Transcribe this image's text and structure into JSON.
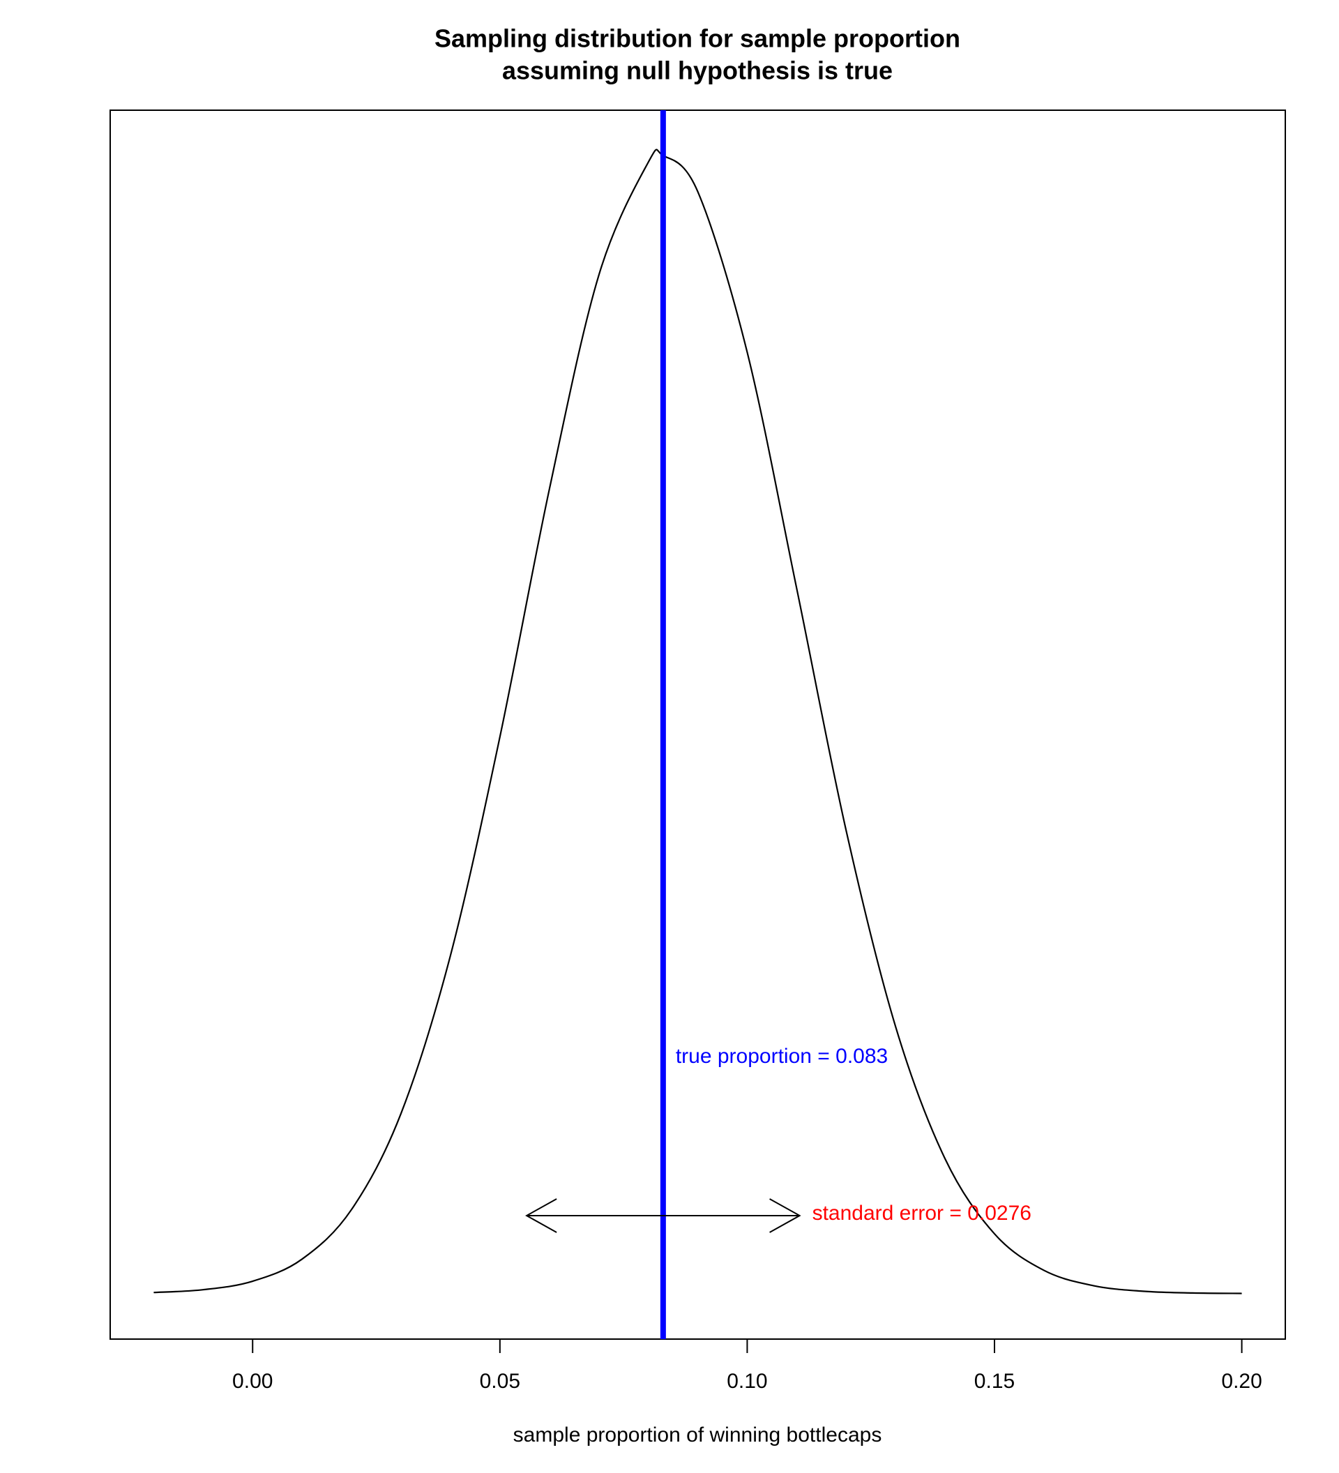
{
  "chart_data": {
    "type": "line",
    "title": [
      "Sampling distribution for sample proportion",
      "assuming null hypothesis is true"
    ],
    "x_label": "sample proportion of winning bottlecaps",
    "x": [
      -0.02,
      -0.01,
      0.0,
      0.01,
      0.02,
      0.03,
      0.04,
      0.05,
      0.06,
      0.07,
      0.08,
      0.083,
      0.09,
      0.1,
      0.11,
      0.12,
      0.13,
      0.14,
      0.15,
      0.16,
      0.17,
      0.18,
      0.19,
      0.2
    ],
    "series": [
      {
        "color": "#000000",
        "values": [
          0.0137,
          0.0495,
          0.157,
          0.438,
          1.068,
          2.287,
          4.294,
          7.071,
          10.216,
          12.935,
          14.369,
          14.454,
          13.996,
          11.956,
          8.957,
          5.883,
          3.391,
          1.713,
          0.759,
          0.295,
          0.1005,
          0.03,
          0.0079,
          0.0018
        ]
      }
    ],
    "xlim": [
      -0.0288,
      0.2088
    ],
    "ylim": [
      -0.578,
      15.03
    ],
    "xticks": [
      {
        "value": 0,
        "label": "0.00"
      },
      0.05,
      {
        "value": 0.1,
        "label": "0.10"
      },
      0.15,
      {
        "value": 0.2,
        "label": "0.20"
      }
    ],
    "true_proportion": {
      "value": 0.083,
      "color": "#0000ff",
      "label": "true proportion = 0.083"
    },
    "standard_error": {
      "value": 0.0276,
      "color": "#ff0000",
      "label": "standard error = 0.0276"
    }
  }
}
